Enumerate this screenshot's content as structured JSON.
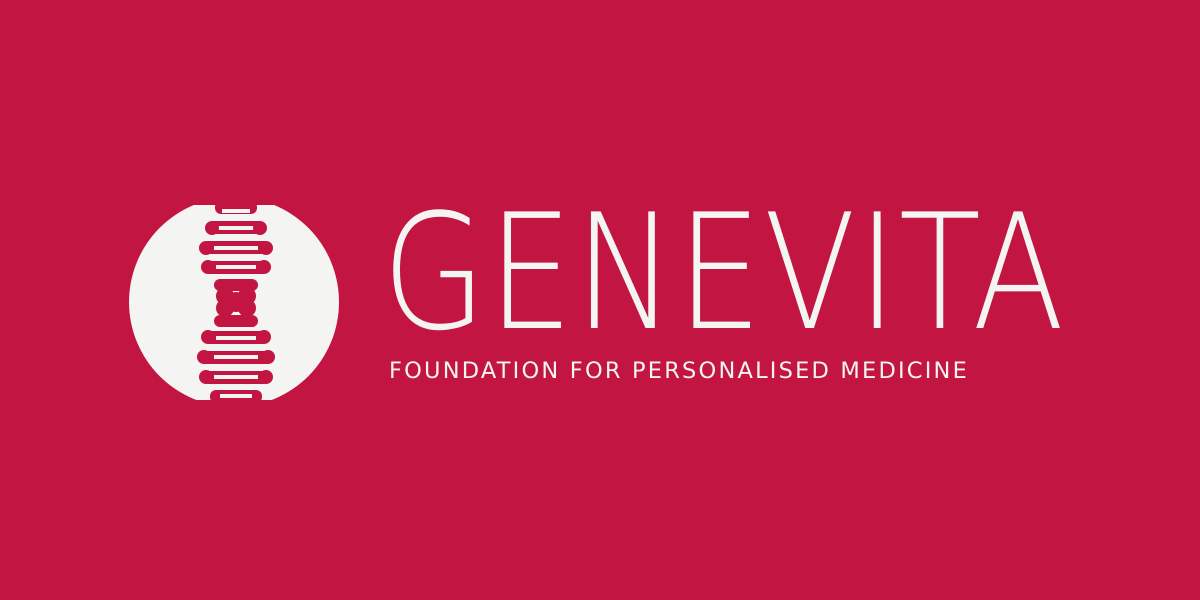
{
  "brand": {
    "name": "GENEVITA",
    "tagline": "FOUNDATION FOR PERSONALISED MEDICINE"
  },
  "logo": {
    "icon": "dna-helix-icon"
  },
  "colors": {
    "background": "#c21542",
    "foreground": "#f4f4f2"
  }
}
